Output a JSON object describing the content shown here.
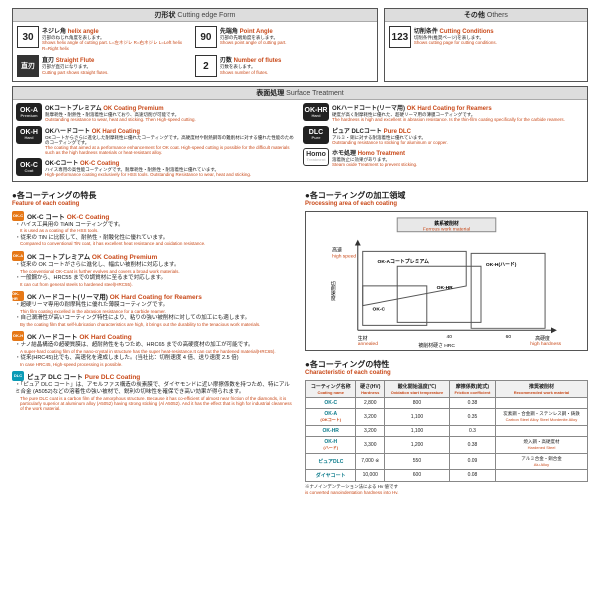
{
  "panels": {
    "cuttingEdge": {
      "jp": "刃形状",
      "en": "Cutting edge Form"
    },
    "others": {
      "jp": "その他",
      "en": "Others"
    },
    "surface": {
      "jp": "表面処理",
      "en": "Surface Treatment"
    }
  },
  "cuttingEdgeItems": [
    {
      "icon": "30",
      "iconStyle": "white",
      "jp": "ネジレ角",
      "en": "helix angle",
      "descJp": "刃部のねじれ角度を表します。",
      "descEn": "Shows helix angle of cutting part. L=左ネジレ R=右ネジレ L=Left helix R=Right helix"
    },
    {
      "icon": "90",
      "iconStyle": "white",
      "jp": "先端角",
      "en": "Point Angle",
      "descJp": "刃部の先端角度を表します。",
      "descEn": "Shows point angle of cutting part."
    },
    {
      "icon": "直刃",
      "iconStyle": "dark",
      "jp": "直刃",
      "en": "Straight Flute",
      "descJp": "刃部が直刃になります。",
      "descEn": "Cutting part shows straight flutes."
    },
    {
      "icon": "2",
      "iconStyle": "white",
      "jp": "刃数",
      "en": "Number of flutes",
      "descJp": "刃数を表します。",
      "descEn": "Shows number of flutes."
    }
  ],
  "othersItems": [
    {
      "icon": "123",
      "iconStyle": "white",
      "jp": "切削条件",
      "en": "Cutting Conditions",
      "descJp": "切削条件(推奨ページ)を表します。",
      "descEn": "Shows cutting page for cutting conditions."
    }
  ],
  "surfaceLeft": [
    {
      "badge": "OK-A",
      "sub": "Premium",
      "jp": "OKコートプレミアム",
      "en": "OK Coating Premium",
      "descJp": "耐摩耗性・耐熱性・耐溶着性に優れており、高速切削が可能です。",
      "descEn": "Outstanding resistance to wear, heat and sticking. Then High-speed cutting."
    },
    {
      "badge": "OK-H",
      "sub": "Hard",
      "jp": "OKハードコート",
      "en": "OK Hard Coating",
      "descJp": "OKコートからさらに進化した耐摩耗性に優れたコーティングです。高硬度材や耐熱鋼等の難削材に対する優れた性能のためのコーティングです。",
      "descEn": "The coating that aimed at a performance enhancement for OK coat. High-speed cutting is possible for the difficult materials such as the high hardness materials or heat-resistant alloy."
    },
    {
      "badge": "OK-C",
      "sub": "Coat",
      "jp": "OK-Cコート",
      "en": "OK-C Coating",
      "descJp": "ハイス専用の高性能コーティングです。耐摩耗性・耐熱性・耐溶着性に優れています。",
      "descEn": "High-performance coating exclusively for HSS tools. Outstanding Resistance to wear, heat and sticking."
    }
  ],
  "surfaceRight": [
    {
      "badge": "OK-HR",
      "sub": "Hard",
      "jp": "OKハードコート(リーマ用)",
      "en": "OK Hard Coating for Reamers",
      "descJp": "硬度が高く耐摩耗性に優れた、超硬リーマ用の薄膜コーティングです。",
      "descEn": "The hardness is high and excellent in abrasion resistance. Is the thin-film coating specifically for the carbide reamers."
    },
    {
      "badge": "DLC",
      "sub": "Pure",
      "jp": "ピュア DLCコート",
      "en": "Pure DLC",
      "descJp": "アルミ・銅に対する耐溶着性に優れています。",
      "descEn": "Outstanding resistance to sticking for aluminum or copper."
    },
    {
      "badge": "Homo",
      "sub": "Treatment",
      "badgeStyle": "homo",
      "jp": "ホモ処理",
      "en": "Homo Treatment",
      "descJp": "溶着防止に効果があります。",
      "descEn": "Steam oxide Treatment to prevent sticking."
    }
  ],
  "featureTitle": {
    "jp": "●各コーティングの特長",
    "en": "Feature of each coating"
  },
  "procTitle": {
    "jp": "●各コーティングの加工領域",
    "en": "Processing area of each coating"
  },
  "charTitle": {
    "jp": "●各コーティングの特性",
    "en": "Characteristic of each coating"
  },
  "features": [
    {
      "badge": "OK-C",
      "color": "orange",
      "jp": "OK-C コート",
      "en": "OK-C Coating",
      "bullets": [
        {
          "jp": "ハイス工具用の TiAlN コーティングです。",
          "en": "It is used as a coating of the HSS tools."
        },
        {
          "jp": "従来の TiN に比較して、耐熱性・耐酸化性に優れています。",
          "en": "Compared to conventional TiN coat, it has excellent heat resistance and oxidation resistance."
        }
      ]
    },
    {
      "badge": "OK-A",
      "color": "orange",
      "jp": "OK コートプレミアム",
      "en": "OK Coating Premium",
      "bullets": [
        {
          "jp": "従来の OK コートがさらに進化し、幅広い被削材に対応します。",
          "en": "The conventional OK-Coat is further evolves and covers a broad work materials."
        },
        {
          "jp": "一般鋼から、HRC55 までの調質材に至るまで対応します。",
          "en": "It can cut from general steels to hardened steel(HRC55)."
        }
      ]
    },
    {
      "badge": "OK-HR",
      "color": "orange",
      "jp": "OK ハードコート(リーマ用)",
      "en": "OK Hard Coating for Reamers",
      "bullets": [
        {
          "jp": "超硬リーマ専用の耐摩耗性に優れた薄膜コーティングです。",
          "en": "Thin film coating excelled in the abrasion resistance for a carbide reamer."
        },
        {
          "jp": "自己潤滑性が高いコーティング特性により、粘りの強い被削材に対しての加工にも適します。",
          "en": "By the coating film that self-lubrication characteristics are high, it brings out the durability to the tenacious work materials."
        }
      ]
    },
    {
      "badge": "OK-H",
      "color": "orange",
      "jp": "OK ハードコート",
      "en": "OK Hard Coating",
      "bullets": [
        {
          "jp": "ナノ結晶構造の超硬質膜は、超耐熱性をもつため、HRC65 までの高硬度材の加工が可能です。",
          "en": "A super-hard coating film of the nano-crystal in structure has the super heat-resistance.It can cut the hardened material(HRC65)."
        },
        {
          "jp": "従来(HRC45)比でも、高速化を達成しました。(当社比：切削速度 4 倍、送り速度 2.5 倍)",
          "en": "In case HRC45, High-speed processing is possible."
        }
      ]
    },
    {
      "badge": "DLC",
      "color": "cyan",
      "jp": "ピュア DLC コート",
      "en": "Pure DLC Coating",
      "bullets": [
        {
          "jp": "「ピュア DLC コート」は、アモルファス構造の炭素膜で、ダイヤモンドに近い摩擦係数を持つため、特にアルミ合金 (A5052)などの溶着性の強い被材で、鋭利の切味性を確保でき高い効果が得られます。",
          "en": "The pure DLC coat is a carbon film of the amorphous structure. Because it has co-efficient of almost near friction of the diamonds, it is particularly superior at aluminum alloy (A5052) having strong sticking (Al A5052). And it has the effect that is high for industrial cleanness of the work material."
        }
      ]
    }
  ],
  "chart": {
    "topBox": "鉄系被削材",
    "topBoxEn": "Ferrous work material",
    "yLabel": "切削速度",
    "yTop": "高速",
    "yTopEn": "high speed",
    "xLabel": "被削材硬さ HRC",
    "xRight": "高硬度",
    "xRightEn": "high hardness",
    "xLeft": "生材",
    "xLeftEn": "annealed",
    "ticks": [
      "40",
      "60"
    ],
    "regions": {
      "okA": "OK-Aコートプレミアム",
      "okC": "OK-C",
      "okHR": "OK-HR",
      "okH": "OK-H(ハード)"
    }
  },
  "charTable": {
    "headers": [
      {
        "jp": "コーティング名称",
        "en": "Coating name"
      },
      {
        "jp": "硬さ(HV)",
        "en": "Hardness"
      },
      {
        "jp": "酸化開始温度(℃)",
        "en": "Oxidation start temperature"
      },
      {
        "jp": "摩擦係数(乾式)",
        "en": "Friction coefficient"
      },
      {
        "jp": "推奨被削材",
        "en": "Recommended work material"
      }
    ],
    "rows": [
      {
        "label": "OK-C",
        "hv": "2,800",
        "oxid": "800",
        "fric": "0.38",
        "mat": "",
        "matEn": ""
      },
      {
        "label": "OK-A",
        "labelEn": "(OKコート)",
        "hv": "3,200",
        "oxid": "1,100",
        "fric": "0.35",
        "mat": "炭素鋼・合金鋼・ステンレス鋼・鋳鉄",
        "matEn": "Carbon Steel Alloy Steel Mordenite Alloy"
      },
      {
        "label": "OK-HR",
        "hv": "3,200",
        "oxid": "1,100",
        "fric": "0.3",
        "mat": "",
        "matEn": ""
      },
      {
        "label": "OK-H",
        "labelEn": "(ハード)",
        "hv": "3,300",
        "oxid": "1,200",
        "fric": "0.38",
        "mat": "焼入鋼・高硬度材",
        "matEn": "Hardened Steel"
      },
      {
        "label": "ピュアDLC",
        "hv": "7,000 ※",
        "oxid": "550",
        "fric": "0.09",
        "mat": "アルミ合金・銅合金",
        "matEn": "Alu Alloy"
      },
      {
        "label": "ダイヤコート",
        "hv": "10,000",
        "oxid": "600",
        "fric": "0.08",
        "mat": "",
        "matEn": ""
      }
    ]
  },
  "footnote": {
    "jp": "※ナノインデンテーション法による Hv 値です",
    "en": "is converted nanoindentation hardness into Hv."
  }
}
